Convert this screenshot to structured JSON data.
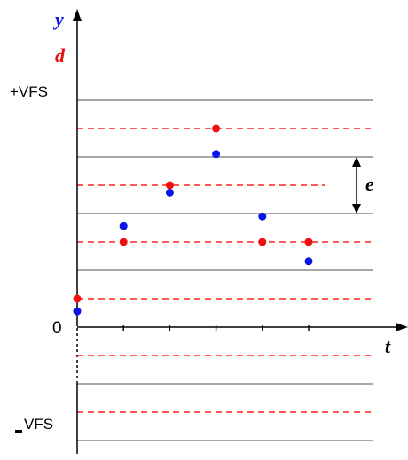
{
  "labels": {
    "y": "y",
    "d": "d",
    "plus_vfs": "+VFS",
    "minus_vfs": "VFS",
    "zero": "0",
    "t": "t",
    "e": "e"
  },
  "colors": {
    "y_points": "#0a14e6",
    "d_points": "#f01010",
    "levels": "#8c8c8c",
    "thresholds": "#ff2020",
    "axis": "#000000"
  },
  "chart_data": {
    "type": "scatter",
    "levels": [
      -2,
      -1,
      0,
      1,
      2,
      3,
      4
    ],
    "thresholds": [
      -1.5,
      -0.5,
      0.5,
      1.5,
      2.5,
      3.5
    ],
    "series": [
      {
        "name": "y",
        "points": [
          [
            0,
            0.28
          ],
          [
            1,
            1.78
          ],
          [
            2,
            2.37
          ],
          [
            3,
            3.05
          ],
          [
            4,
            1.95
          ],
          [
            5,
            1.16
          ]
        ]
      },
      {
        "name": "d",
        "points": [
          [
            0,
            0.5
          ],
          [
            1,
            1.5
          ],
          [
            2,
            2.5
          ],
          [
            3,
            3.5
          ],
          [
            4,
            1.5
          ],
          [
            5,
            1.5
          ]
        ]
      }
    ]
  }
}
